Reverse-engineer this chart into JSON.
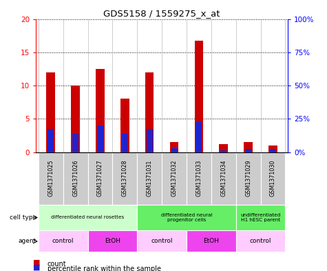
{
  "title": "GDS5158 / 1559275_x_at",
  "samples": [
    "GSM1371025",
    "GSM1371026",
    "GSM1371027",
    "GSM1371028",
    "GSM1371031",
    "GSM1371032",
    "GSM1371033",
    "GSM1371034",
    "GSM1371029",
    "GSM1371030"
  ],
  "count_values": [
    12.0,
    10.0,
    12.5,
    8.0,
    12.0,
    1.5,
    16.7,
    1.2,
    1.5,
    1.0
  ],
  "percentile_values": [
    3.5,
    2.8,
    4.0,
    2.8,
    3.5,
    0.6,
    4.5,
    0.3,
    0.5,
    0.4
  ],
  "bar_color": "#cc0000",
  "pct_color": "#2222cc",
  "ylim_left": [
    0,
    20
  ],
  "ylim_right": [
    0,
    100
  ],
  "yticks_left": [
    0,
    5,
    10,
    15,
    20
  ],
  "yticks_right": [
    0,
    25,
    50,
    75,
    100
  ],
  "yticklabels_right": [
    "0%",
    "25%",
    "50%",
    "75%",
    "100%"
  ],
  "cell_type_groups": [
    {
      "label": "differentiated neural rosettes",
      "start": 0,
      "end": 4,
      "color": "#ccffcc"
    },
    {
      "label": "differentiated neural\nprogenitor cells",
      "start": 4,
      "end": 8,
      "color": "#66ee66"
    },
    {
      "label": "undifferentiated\nH1 hESC parent",
      "start": 8,
      "end": 10,
      "color": "#66ee66"
    }
  ],
  "agent_groups": [
    {
      "label": "control",
      "start": 0,
      "end": 2,
      "color": "#ffccff"
    },
    {
      "label": "EtOH",
      "start": 2,
      "end": 4,
      "color": "#ee44ee"
    },
    {
      "label": "control",
      "start": 4,
      "end": 6,
      "color": "#ffccff"
    },
    {
      "label": "EtOH",
      "start": 6,
      "end": 8,
      "color": "#ee44ee"
    },
    {
      "label": "control",
      "start": 8,
      "end": 10,
      "color": "#ffccff"
    }
  ],
  "cell_type_label": "cell type",
  "agent_label": "agent",
  "legend_count_label": "count",
  "legend_pct_label": "percentile rank within the sample",
  "sample_bg_color": "#cccccc",
  "bar_width": 0.35,
  "pct_bar_width": 0.25
}
